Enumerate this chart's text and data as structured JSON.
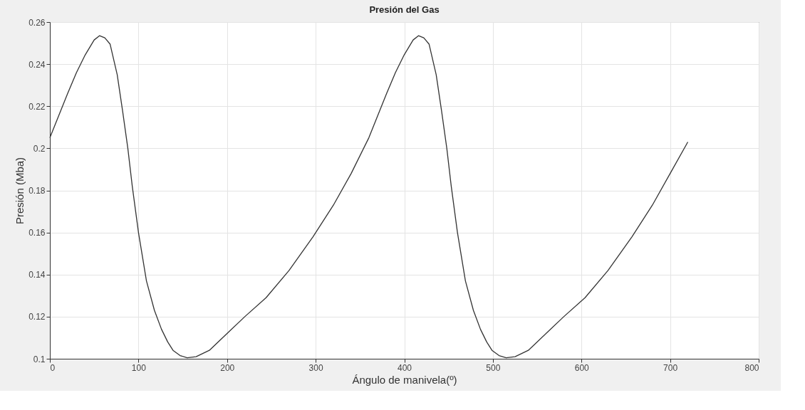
{
  "chart_data": {
    "type": "line",
    "title": "Presión del Gas",
    "xlabel": "Ángulo de manivela(º)",
    "ylabel": "Presión (Mba)",
    "x": [
      0,
      10,
      20,
      30,
      40,
      50,
      56,
      62,
      68,
      76,
      82,
      88,
      93,
      100,
      109,
      118,
      126,
      133,
      139,
      147,
      155,
      165,
      180,
      200,
      220,
      244,
      270,
      297,
      320,
      340,
      360,
      370,
      380,
      390,
      400,
      410,
      416,
      422,
      428,
      436,
      442,
      448,
      453,
      460,
      469,
      478,
      486,
      493,
      499,
      507,
      515,
      525,
      540,
      560,
      580,
      604,
      630,
      657,
      680,
      700,
      720
    ],
    "series": [
      {
        "color": "#333333",
        "values": [
          0.205,
          0.2155,
          0.226,
          0.236,
          0.2445,
          0.2515,
          0.2535,
          0.2525,
          0.2495,
          0.235,
          0.218,
          0.2,
          0.182,
          0.16,
          0.137,
          0.123,
          0.114,
          0.108,
          0.104,
          0.1015,
          0.1005,
          0.101,
          0.104,
          0.112,
          0.12,
          0.129,
          0.142,
          0.158,
          0.173,
          0.188,
          0.205,
          0.2155,
          0.226,
          0.236,
          0.2445,
          0.2515,
          0.2535,
          0.2525,
          0.2495,
          0.235,
          0.218,
          0.2,
          0.182,
          0.16,
          0.137,
          0.123,
          0.114,
          0.108,
          0.104,
          0.1015,
          0.1005,
          0.101,
          0.104,
          0.112,
          0.12,
          0.129,
          0.142,
          0.158,
          0.173,
          0.188,
          0.203
        ]
      }
    ],
    "xlim": [
      0,
      800
    ],
    "xticks": [
      0,
      100,
      200,
      300,
      400,
      500,
      600,
      700,
      800
    ],
    "ylim": [
      0.1,
      0.26
    ],
    "yticks": [
      0.1,
      0.12,
      0.14,
      0.16,
      0.18,
      0.2,
      0.22,
      0.24,
      0.26
    ],
    "grid": true,
    "line_style": "solid",
    "marker": "none"
  }
}
